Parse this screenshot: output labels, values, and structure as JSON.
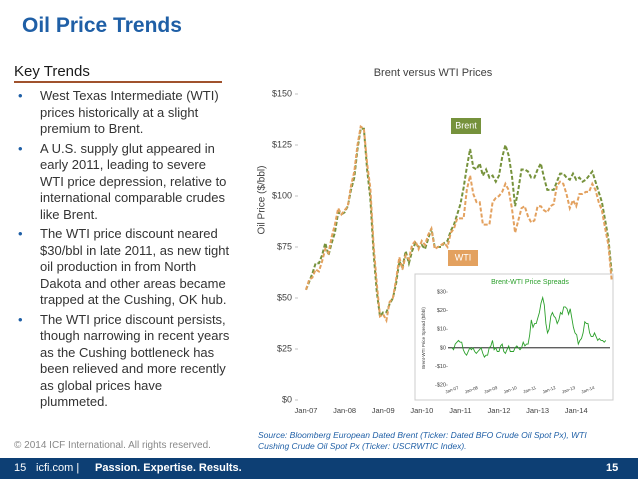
{
  "slide": {
    "title": "Oil Price Trends",
    "section": "Key Trends",
    "bullets": [
      "West Texas Intermediate (WTI) prices historically at a slight premium to Brent.",
      "A U.S. supply glut appeared in early 2011, leading to severe WTI price depression, relative to international comparable crudes like Brent.",
      "The WTI price discount neared $30/bbl in late 2011, as new tight oil production in from North Dakota and other areas became trapped at the Cushing, OK hub.",
      "The WTI price discount persists, though narrowing in recent years as the Cushing bottleneck has been relieved and more recently as global prices have plummeted."
    ],
    "copyright": "© 2014 ICF International. All rights reserved.",
    "source": "Source: Bloomberg European Dated Brent (Ticker: Dated BFO Crude Oil Spot Px), WTI Cushing Crude Oil Spot Px (Ticker: USCRWTIC Index).",
    "footer": {
      "page_left": "15",
      "brand_site": "icfi.com |",
      "tagline": "Passion. Expertise. Results.",
      "page_right": "15"
    }
  },
  "chart_data": [
    {
      "type": "line",
      "title": "Brent versus WTI Prices",
      "y_label": "Oil Price ($/bbl)",
      "categories": [
        "Jan-07",
        null,
        null,
        null,
        null,
        null,
        null,
        null,
        null,
        null,
        null,
        null,
        "Jan-08",
        null,
        null,
        null,
        null,
        null,
        null,
        null,
        null,
        null,
        null,
        null,
        "Jan-09",
        null,
        null,
        null,
        null,
        null,
        null,
        null,
        null,
        null,
        null,
        null,
        "Jan-10",
        null,
        null,
        null,
        null,
        null,
        null,
        null,
        null,
        null,
        null,
        null,
        "Jan-11",
        null,
        null,
        null,
        null,
        null,
        null,
        null,
        null,
        null,
        null,
        null,
        "Jan-12",
        null,
        null,
        null,
        null,
        null,
        null,
        null,
        null,
        null,
        null,
        null,
        "Jan-13",
        null,
        null,
        null,
        null,
        null,
        null,
        null,
        null,
        null,
        null,
        null,
        "Jan-14",
        null,
        null,
        null,
        null,
        null,
        null,
        null,
        null,
        null,
        null,
        null
      ],
      "series": [
        {
          "name": "Brent",
          "color": "#76923c",
          "values": [
            54,
            58,
            62,
            67,
            67,
            71,
            77,
            71,
            77,
            82,
            92,
            91,
            92,
            95,
            103,
            109,
            123,
            133,
            133,
            113,
            99,
            72,
            53,
            41,
            43,
            43,
            47,
            50,
            57,
            68,
            65,
            73,
            67,
            73,
            77,
            75,
            76,
            74,
            79,
            84,
            75,
            75,
            75,
            77,
            78,
            83,
            86,
            91,
            96,
            104,
            114,
            123,
            114,
            113,
            116,
            110,
            113,
            109,
            110,
            107,
            110,
            119,
            125,
            120,
            110,
            95,
            103,
            113,
            113,
            112,
            109,
            109,
            113,
            116,
            109,
            103,
            103,
            103,
            107,
            111,
            111,
            109,
            108,
            111,
            108,
            109,
            107,
            108,
            110,
            112,
            107,
            102,
            97,
            88,
            79,
            63
          ]
        },
        {
          "name": "WTI",
          "color": "#e3a15f",
          "values": [
            54,
            59,
            60,
            64,
            63,
            68,
            74,
            72,
            80,
            86,
            94,
            91,
            93,
            95,
            105,
            112,
            125,
            134,
            133,
            116,
            104,
            76,
            57,
            41,
            42,
            39,
            48,
            50,
            59,
            70,
            64,
            71,
            69,
            76,
            78,
            74,
            78,
            76,
            81,
            84,
            74,
            75,
            76,
            77,
            75,
            82,
            84,
            89,
            89,
            89,
            103,
            110,
            101,
            97,
            97,
            86,
            86,
            86,
            97,
            99,
            100,
            102,
            106,
            103,
            94,
            82,
            88,
            94,
            95,
            90,
            87,
            88,
            95,
            95,
            93,
            92,
            95,
            96,
            105,
            107,
            106,
            101,
            94,
            98,
            95,
            101,
            101,
            102,
            102,
            106,
            103,
            97,
            93,
            84,
            76,
            59
          ]
        }
      ],
      "ylim": [
        0,
        150
      ],
      "yticks": [
        {
          "value": 0,
          "label": "$0"
        },
        {
          "value": 25,
          "label": "$25"
        },
        {
          "value": 50,
          "label": "$50"
        },
        {
          "value": 75,
          "label": "$75"
        },
        {
          "value": 100,
          "label": "$100"
        },
        {
          "value": 125,
          "label": "$125"
        },
        {
          "value": 150,
          "label": "$150"
        }
      ],
      "grid": false
    },
    {
      "type": "line",
      "title": "Brent-WTI Price Spreads",
      "y_label": "Brent-WTI Price Spread ($/bbl)",
      "categories": [
        "Jan-07",
        null,
        null,
        null,
        null,
        null,
        null,
        null,
        null,
        null,
        null,
        null,
        "Jan-08",
        null,
        null,
        null,
        null,
        null,
        null,
        null,
        null,
        null,
        null,
        null,
        "Jan-09",
        null,
        null,
        null,
        null,
        null,
        null,
        null,
        null,
        null,
        null,
        null,
        "Jan-10",
        null,
        null,
        null,
        null,
        null,
        null,
        null,
        null,
        null,
        null,
        null,
        "Jan-11",
        null,
        null,
        null,
        null,
        null,
        null,
        null,
        null,
        null,
        null,
        null,
        "Jan-12",
        null,
        null,
        null,
        null,
        null,
        null,
        null,
        null,
        null,
        null,
        null,
        "Jan-13",
        null,
        null,
        null,
        null,
        null,
        null,
        null,
        null,
        null,
        null,
        null,
        "Jan-14",
        null,
        null,
        null,
        null,
        null,
        null,
        null,
        null,
        null,
        null,
        null
      ],
      "series": [
        {
          "name": "Brent-WTI",
          "color": "#2ca02c",
          "values": [
            0,
            -1,
            2,
            3,
            4,
            3,
            3,
            -1,
            -3,
            -4,
            -2,
            0,
            -1,
            0,
            -2,
            -3,
            -2,
            -1,
            0,
            -3,
            -5,
            -4,
            -4,
            0,
            1,
            4,
            -1,
            0,
            -2,
            -2,
            1,
            2,
            -2,
            -3,
            -1,
            1,
            -2,
            -2,
            -2,
            0,
            1,
            0,
            -1,
            0,
            3,
            1,
            2,
            2,
            7,
            15,
            11,
            13,
            13,
            16,
            19,
            24,
            27,
            23,
            13,
            8,
            10,
            17,
            19,
            17,
            16,
            13,
            15,
            19,
            18,
            22,
            22,
            21,
            18,
            21,
            16,
            11,
            8,
            7,
            2,
            4,
            5,
            8,
            14,
            13,
            13,
            8,
            6,
            6,
            8,
            6,
            4,
            5,
            4,
            4,
            3,
            4
          ]
        }
      ],
      "ylim": [
        -20,
        30
      ],
      "yticks": [
        {
          "value": -20,
          "label": "-$20"
        },
        {
          "value": -10,
          "label": "-$10"
        },
        {
          "value": 0,
          "label": "$0"
        },
        {
          "value": 10,
          "label": "$10"
        },
        {
          "value": 20,
          "label": "$20"
        },
        {
          "value": 30,
          "label": "$30"
        }
      ],
      "grid": false
    }
  ]
}
